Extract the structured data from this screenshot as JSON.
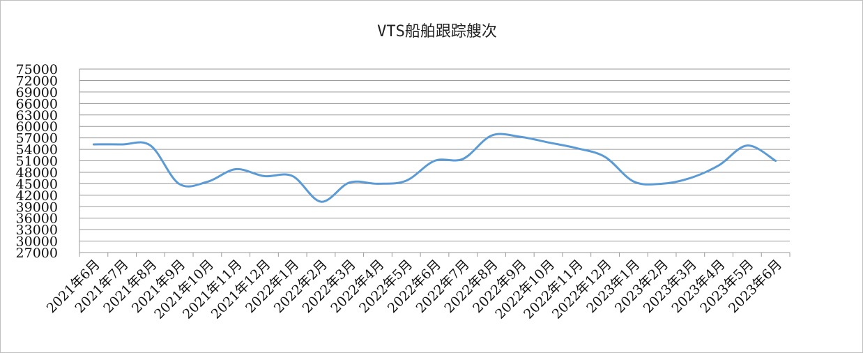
{
  "chart_data": {
    "type": "line",
    "title": "VTS船舶跟踪艘次",
    "xlabel": "",
    "ylabel": "",
    "ylim": [
      27000,
      75000
    ],
    "y_ticks": [
      27000,
      30000,
      33000,
      36000,
      39000,
      42000,
      45000,
      48000,
      51000,
      54000,
      57000,
      60000,
      63000,
      66000,
      69000,
      72000,
      75000
    ],
    "categories": [
      "2021年6月",
      "2021年7月",
      "2021年8月",
      "2021年9月",
      "2021年10月",
      "2021年11月",
      "2021年12月",
      "2022年1月",
      "2022年2月",
      "2022年3月",
      "2022年4月",
      "2022年5月",
      "2022年6月",
      "2022年7月",
      "2022年8月",
      "2022年9月",
      "2022年10月",
      "2022年11月",
      "2022年12月",
      "2023年1月",
      "2023年2月",
      "2023年3月",
      "2023年4月",
      "2023年5月",
      "2023年6月"
    ],
    "series": [
      {
        "values": [
          55300,
          55300,
          55000,
          45000,
          45500,
          48800,
          47000,
          47000,
          40300,
          45300,
          45000,
          45800,
          51000,
          51500,
          57600,
          57300,
          55800,
          54300,
          52000,
          45600,
          45000,
          46500,
          49800,
          55000,
          51000
        ],
        "color": "#5b9bd5"
      }
    ],
    "grid": true,
    "legend": "none"
  }
}
